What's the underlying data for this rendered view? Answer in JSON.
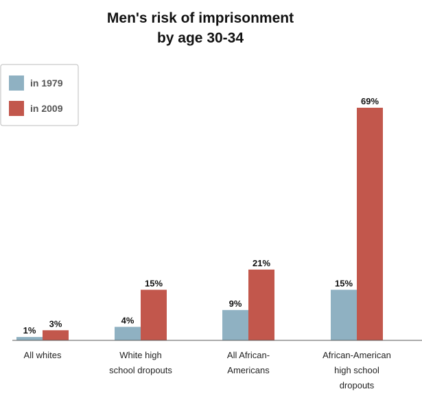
{
  "chart_data": {
    "type": "bar",
    "title_lines": [
      "Men's risk of imprisonment",
      "by age 30-34"
    ],
    "categories": [
      [
        "All whites"
      ],
      [
        "White high",
        "school dropouts"
      ],
      [
        "All African-",
        "Americans"
      ],
      [
        "African-American",
        "high school",
        "dropouts"
      ]
    ],
    "series": [
      {
        "name": "in 1979",
        "color": "#8fb1c2",
        "values": [
          1,
          4,
          9,
          15
        ],
        "labels": [
          "1%",
          "4%",
          "9%",
          "15%"
        ]
      },
      {
        "name": "in 2009",
        "color": "#c2574c",
        "values": [
          3,
          15,
          21,
          69
        ],
        "labels": [
          "3%",
          "15%",
          "21%",
          "69%"
        ]
      }
    ],
    "ylim": [
      0,
      69
    ],
    "grid": false,
    "legend_position": "top-left",
    "unit": "%"
  }
}
